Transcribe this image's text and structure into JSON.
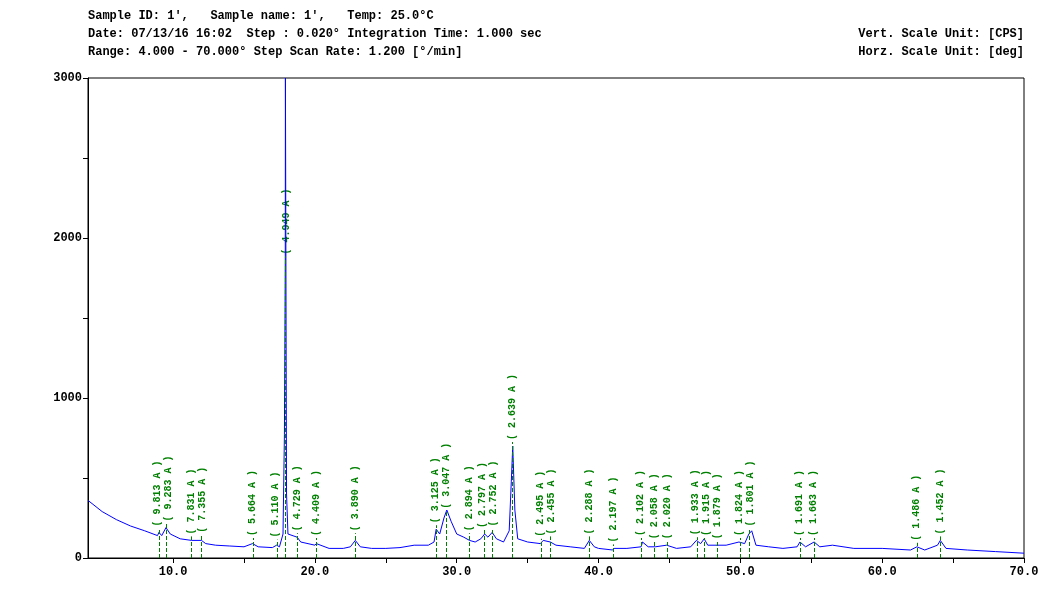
{
  "chart_data": {
    "type": "line",
    "title": "Sample ID: 1',   Sample name: 1',   Temp: 25.0°C",
    "annotations": [
      "Date: 07/13/16 16:02  Step : 0.020° Integration Time: 1.000 sec",
      "Range: 4.000 - 70.000° Step Scan Rate: 1.200 [°/min]",
      "Vert. Scale Unit: [CPS]",
      "Horz. Scale Unit: [deg]",
      {
        "text": "( 9.813 A )",
        "x": 9.01,
        "y": 160
      },
      {
        "text": "( 9.283 A )",
        "x": 9.52,
        "y": 190
      },
      {
        "text": "( 7.831 A )",
        "x": 11.29,
        "y": 110
      },
      {
        "text": "( 7.355 A )",
        "x": 12.02,
        "y": 120
      },
      {
        "text": "( 5.664 A )",
        "x": 15.63,
        "y": 100
      },
      {
        "text": "( 5.110 A )",
        "x": 17.34,
        "y": 90
      },
      {
        "text": "( 4.949 A )",
        "x": 17.91,
        "y": 1860
      },
      {
        "text": "( 4.729 A )",
        "x": 18.75,
        "y": 130
      },
      {
        "text": "( 4.409 A )",
        "x": 20.12,
        "y": 100
      },
      {
        "text": "( 3.890 A )",
        "x": 22.84,
        "y": 130
      },
      {
        "text": "( 3.125 A )",
        "x": 28.54,
        "y": 180
      },
      {
        "text": "( 3.047 A )",
        "x": 29.29,
        "y": 270
      },
      {
        "text": "( 2.894 A )",
        "x": 30.87,
        "y": 130
      },
      {
        "text": "( 2.797 A )",
        "x": 31.97,
        "y": 150
      },
      {
        "text": "( 2.752 A )",
        "x": 32.51,
        "y": 160
      },
      {
        "text": "( 2.639 A )",
        "x": 33.94,
        "y": 700
      },
      {
        "text": "( 2.495 A )",
        "x": 35.97,
        "y": 95
      },
      {
        "text": "( 2.455 A )",
        "x": 36.57,
        "y": 110
      },
      {
        "text": "( 2.288 A )",
        "x": 39.35,
        "y": 110
      },
      {
        "text": "( 2.197 A )",
        "x": 41.05,
        "y": 60
      },
      {
        "text": "( 2.102 A )",
        "x": 42.99,
        "y": 100
      },
      {
        "text": "( 2.058 A )",
        "x": 43.96,
        "y": 80
      },
      {
        "text": "( 2.020 A )",
        "x": 44.83,
        "y": 80
      },
      {
        "text": "( 1.933 A )",
        "x": 46.97,
        "y": 105
      },
      {
        "text": "( 1.915 A )",
        "x": 47.43,
        "y": 100
      },
      {
        "text": "( 1.879 A )",
        "x": 48.4,
        "y": 80
      },
      {
        "text": "( 1.824 A )",
        "x": 49.96,
        "y": 100
      },
      {
        "text": "( 1.801 A )",
        "x": 50.64,
        "y": 160
      },
      {
        "text": "( 1.691 A )",
        "x": 54.2,
        "y": 100
      },
      {
        "text": "( 1.663 A )",
        "x": 55.19,
        "y": 100
      },
      {
        "text": "( 1.486 A )",
        "x": 62.44,
        "y": 70
      },
      {
        "text": "( 1.452 A )",
        "x": 64.08,
        "y": 110
      }
    ],
    "x": [
      4,
      5,
      6,
      7,
      8,
      8.9,
      9.0,
      9.2,
      9.5,
      9.8,
      10.5,
      11.3,
      12.0,
      12.3,
      13,
      14,
      15,
      15.6,
      16,
      17,
      17.3,
      17.5,
      17.75,
      17.85,
      17.91,
      17.92,
      18.0,
      18.1,
      18.75,
      19,
      20,
      20.1,
      21,
      22,
      22.5,
      22.85,
      23.2,
      24,
      25,
      26,
      27,
      28,
      28.4,
      28.55,
      28.8,
      29.1,
      29.3,
      29.6,
      30,
      30.5,
      30.9,
      31.3,
      31.7,
      31.97,
      32.2,
      32.5,
      32.8,
      33.3,
      33.7,
      33.85,
      33.95,
      34.1,
      34.3,
      35,
      35.9,
      36.1,
      36.6,
      37,
      38,
      39,
      39.35,
      39.7,
      40,
      41,
      41.1,
      42,
      43,
      43.1,
      43.5,
      44,
      44.8,
      45.5,
      46.5,
      46.9,
      47.2,
      47.45,
      47.7,
      48.4,
      49,
      49.9,
      50.3,
      50.6,
      50.8,
      51.1,
      52,
      53,
      54,
      54.2,
      54.6,
      55.2,
      55.6,
      56.5,
      58,
      60,
      62,
      62.45,
      63,
      63.9,
      64.1,
      64.5,
      66,
      68,
      70
    ],
    "series": [
      {
        "color": "#0000ff",
        "values": [
          360,
          290,
          240,
          200,
          170,
          140,
          160,
          140,
          190,
          150,
          120,
          110,
          110,
          90,
          80,
          75,
          70,
          90,
          70,
          65,
          80,
          70,
          150,
          770,
          1860,
          3000,
          400,
          150,
          130,
          100,
          80,
          90,
          60,
          60,
          70,
          110,
          70,
          60,
          60,
          65,
          80,
          80,
          100,
          180,
          150,
          250,
          300,
          230,
          150,
          130,
          110,
          100,
          120,
          150,
          130,
          160,
          120,
          100,
          170,
          480,
          700,
          300,
          120,
          100,
          90,
          110,
          100,
          80,
          70,
          60,
          110,
          70,
          60,
          50,
          60,
          60,
          70,
          100,
          70,
          70,
          80,
          60,
          70,
          110,
          90,
          120,
          80,
          80,
          80,
          100,
          90,
          150,
          170,
          80,
          70,
          60,
          70,
          100,
          70,
          100,
          70,
          80,
          60,
          60,
          50,
          70,
          50,
          80,
          110,
          60,
          50,
          40,
          30
        ]
      }
    ],
    "xlim": [
      4,
      70
    ],
    "ylim": [
      0,
      3000
    ],
    "xticks": [
      {
        "value": 10,
        "label": "10.0"
      },
      {
        "value": 15,
        "label": null
      },
      {
        "value": 20,
        "label": "20.0"
      },
      {
        "value": 25,
        "label": null
      },
      {
        "value": 30,
        "label": "30.0"
      },
      {
        "value": 35,
        "label": null
      },
      {
        "value": 40,
        "label": "40.0"
      },
      {
        "value": 45,
        "label": null
      },
      {
        "value": 50,
        "label": "50.0"
      },
      {
        "value": 55,
        "label": null
      },
      {
        "value": 60,
        "label": "60.0"
      },
      {
        "value": 65,
        "label": null
      },
      {
        "value": 70,
        "label": "70.0"
      }
    ],
    "yticks": [
      0,
      {
        "value": 500,
        "label": null
      },
      1000,
      {
        "value": 1500,
        "label": null
      },
      2000,
      {
        "value": 2500,
        "label": null
      },
      3000
    ],
    "grid": false,
    "marker": "none",
    "line_style": "solid"
  }
}
